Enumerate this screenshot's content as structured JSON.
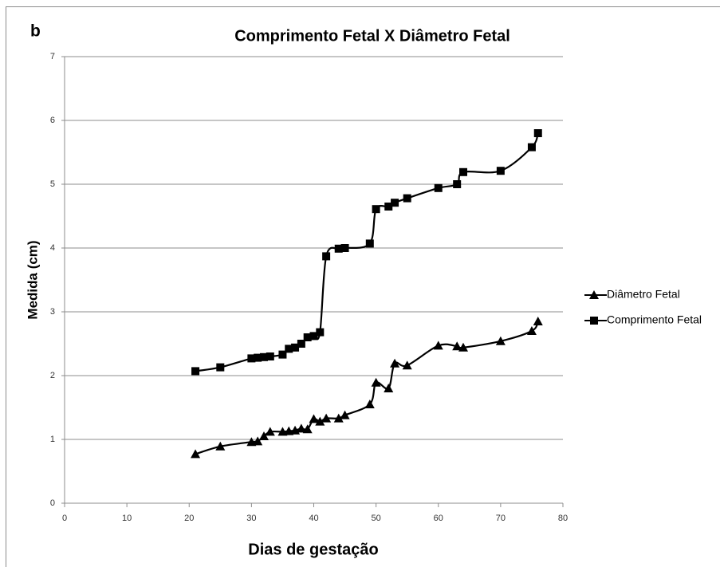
{
  "chart_data": {
    "type": "line",
    "panel_label": "b",
    "title": "Comprimento Fetal X Diâmetro Fetal",
    "x_label": "Dias de gestação",
    "y_label": "Medida (cm)",
    "xlim": [
      0,
      80
    ],
    "xticks": [
      0,
      10,
      20,
      30,
      40,
      50,
      60,
      70,
      80
    ],
    "ylim": [
      0,
      7
    ],
    "yticks": [
      0,
      1,
      2,
      3,
      4,
      5,
      6,
      7
    ],
    "grid": true,
    "smooth": true,
    "legend": "right",
    "series": [
      {
        "name": "Diâmetro Fetal",
        "color": "#000000",
        "marker": "triangle",
        "x": [
          21,
          25,
          30,
          31,
          32,
          33,
          35,
          36,
          37,
          38,
          39,
          40,
          41,
          42,
          44,
          45,
          49,
          50,
          52,
          53,
          55,
          60,
          63,
          64,
          70,
          75,
          76
        ],
        "values": [
          0.77,
          0.89,
          0.96,
          0.97,
          1.05,
          1.12,
          1.12,
          1.13,
          1.14,
          1.17,
          1.16,
          1.32,
          1.28,
          1.33,
          1.33,
          1.38,
          1.55,
          1.89,
          1.8,
          2.19,
          2.16,
          2.47,
          2.46,
          2.44,
          2.54,
          2.7,
          2.85
        ]
      },
      {
        "name": "Comprimento Fetal",
        "color": "#000000",
        "marker": "square",
        "x": [
          21,
          25,
          30,
          31,
          32,
          33,
          35,
          36,
          37,
          38,
          39,
          40,
          41,
          42,
          44,
          45,
          49,
          50,
          52,
          53,
          55,
          60,
          63,
          64,
          70,
          75,
          76
        ],
        "values": [
          2.07,
          2.13,
          2.27,
          2.28,
          2.29,
          2.3,
          2.33,
          2.42,
          2.44,
          2.5,
          2.6,
          2.62,
          2.68,
          3.87,
          3.99,
          4.0,
          4.07,
          4.61,
          4.65,
          4.71,
          4.78,
          4.94,
          5.0,
          5.19,
          5.21,
          5.58,
          5.8
        ]
      }
    ]
  }
}
